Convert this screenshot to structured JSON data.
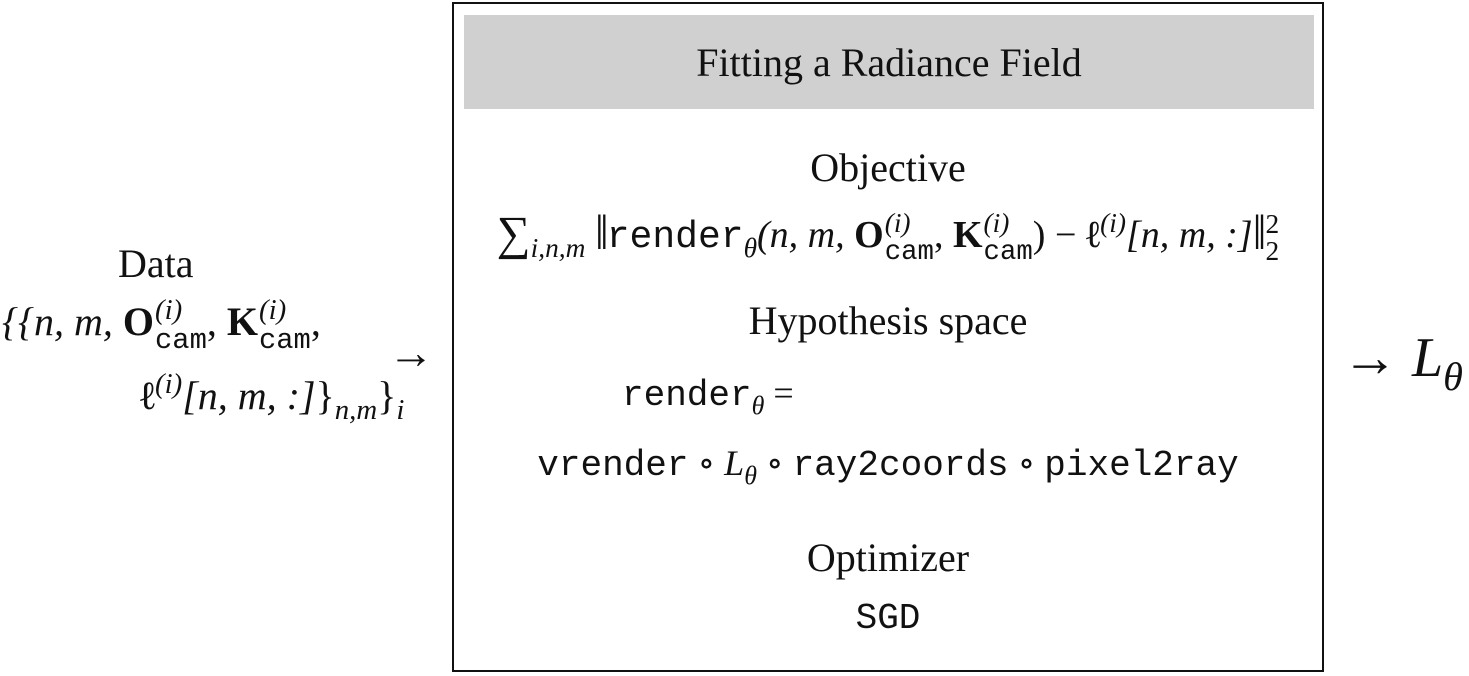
{
  "box": {
    "title": "Fitting a Radiance Field",
    "objective_label": "Objective",
    "hypothesis_label": "Hypothesis space",
    "optimizer_label": "Optimizer",
    "optimizer_value": "SGD",
    "header_color": "#d0d0d0"
  },
  "data": {
    "title": "Data"
  },
  "math": {
    "sum": "∑",
    "sum_sub": "i,n,m",
    "norm_bar": "‖",
    "norm_sup": "2",
    "norm_sub": "2",
    "render": "render",
    "theta": "θ",
    "args_open": "(n, m, ",
    "O": "O",
    "K": "K",
    "cam": "cam",
    "i_sup": "(i)",
    "comma": ", ",
    "minus": ") − ",
    "ell": "ℓ",
    "ell_idx": "[n, m, :]",
    "equals": " =",
    "vrender": "vrender",
    "circ": " ∘ ",
    "L": "L",
    "ray2coords": "ray2coords",
    "pixel2ray": "pixel2ray",
    "data_open": "{{n, m, ",
    "data_close": "}",
    "nm_sub": "n,m",
    "i_sub": "i",
    "arrow": "→"
  }
}
